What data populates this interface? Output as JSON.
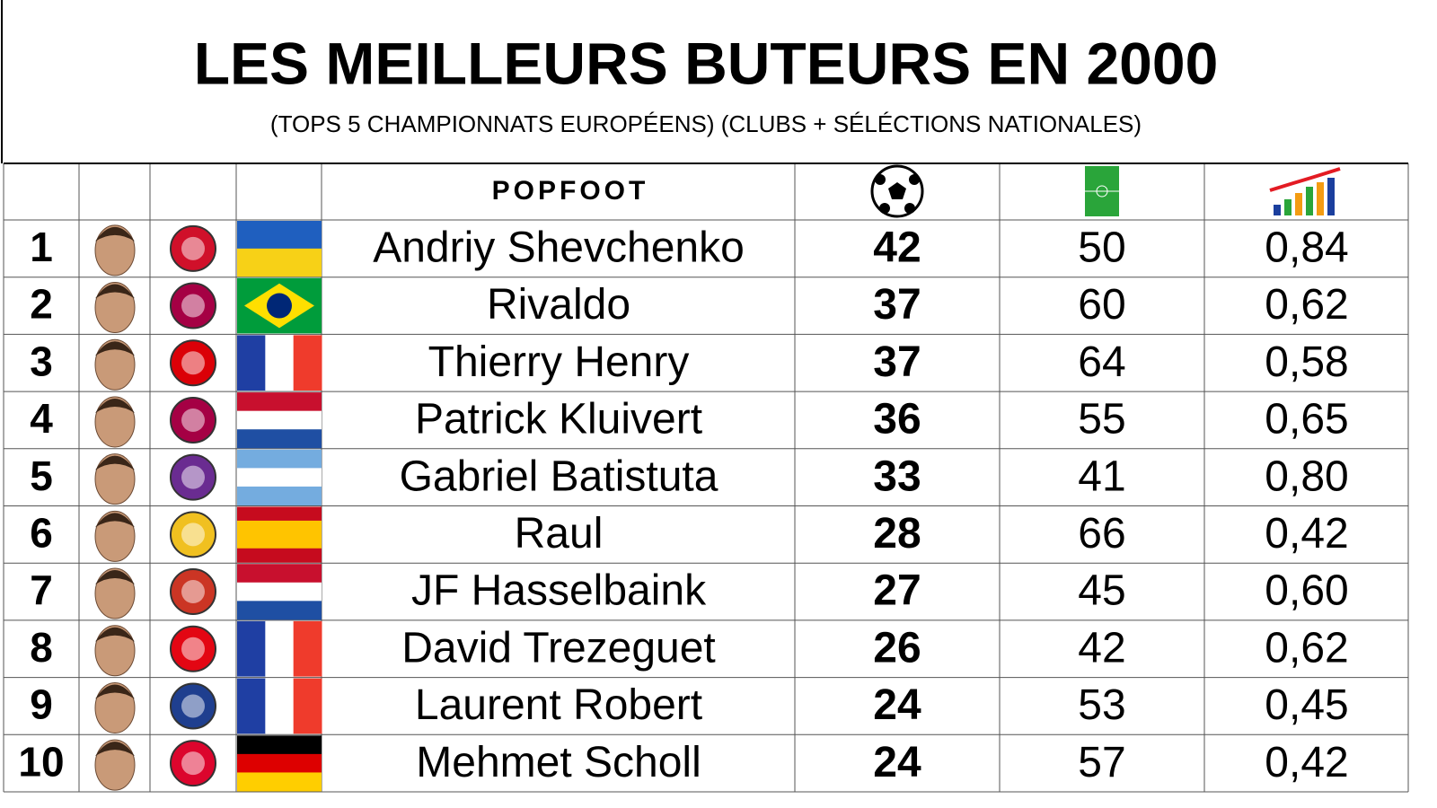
{
  "header": {
    "title": "LES MEILLEURS BUTEURS EN 2000",
    "subtitle": "(TOPS 5 CHAMPIONNATS EUROPÉENS) (CLUBS + SÉLÉCTIONS NATIONALES)"
  },
  "table": {
    "brand": "POPFOOT",
    "rows": [
      {
        "rank": 1,
        "name": "Andriy Shevchenko",
        "goals": 42,
        "matches": 50,
        "ratio": "0,84"
      },
      {
        "rank": 2,
        "name": "Rivaldo",
        "goals": 37,
        "matches": 60,
        "ratio": "0,62"
      },
      {
        "rank": 3,
        "name": "Thierry Henry",
        "goals": 37,
        "matches": 64,
        "ratio": "0,58"
      },
      {
        "rank": 4,
        "name": "Patrick Kluivert",
        "goals": 36,
        "matches": 55,
        "ratio": "0,65"
      },
      {
        "rank": 5,
        "name": "Gabriel Batistuta",
        "goals": 33,
        "matches": 41,
        "ratio": "0,80"
      },
      {
        "rank": 6,
        "name": "Raul",
        "goals": 28,
        "matches": 66,
        "ratio": "0,42"
      },
      {
        "rank": 7,
        "name": "JF Hasselbaink",
        "goals": 27,
        "matches": 45,
        "ratio": "0,60"
      },
      {
        "rank": 8,
        "name": "David Trezeguet",
        "goals": 26,
        "matches": 42,
        "ratio": "0,62"
      },
      {
        "rank": 9,
        "name": "Laurent Robert",
        "goals": 24,
        "matches": 53,
        "ratio": "0,45"
      },
      {
        "rank": 10,
        "name": "Mehmet Scholl",
        "goals": 24,
        "matches": 57,
        "ratio": "0,42"
      }
    ]
  }
}
